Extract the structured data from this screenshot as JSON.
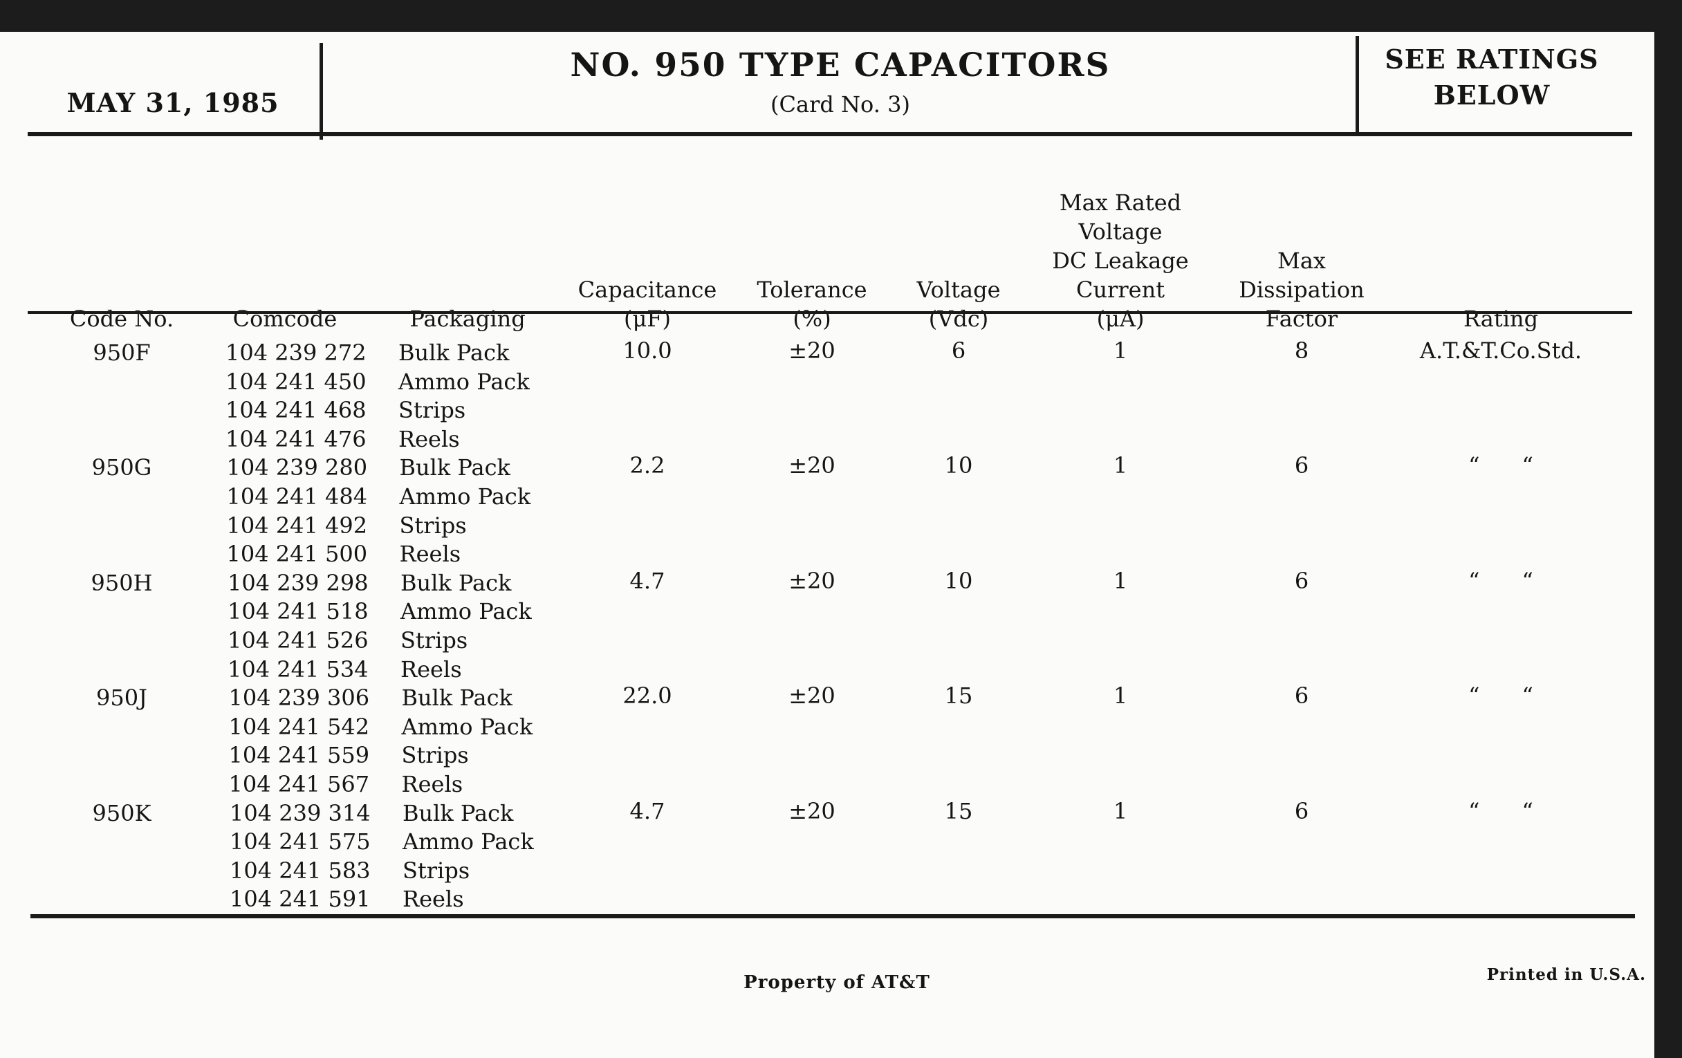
{
  "header": {
    "date": "MAY 31, 1985",
    "title": "NO. 950 TYPE CAPACITORS",
    "subtitle": "(Card No. 3)",
    "note_line1": "SEE RATINGS",
    "note_line2": "BELOW"
  },
  "columns": [
    {
      "key": "code",
      "lines": [
        "Code No."
      ]
    },
    {
      "key": "comcode",
      "lines": [
        "Comcode"
      ]
    },
    {
      "key": "packaging",
      "lines": [
        "Packaging"
      ]
    },
    {
      "key": "capacitance",
      "lines": [
        "Capacitance",
        "(μF)"
      ]
    },
    {
      "key": "tolerance",
      "lines": [
        "Tolerance",
        "(%)"
      ]
    },
    {
      "key": "voltage",
      "lines": [
        "Voltage",
        "(Vdc)"
      ]
    },
    {
      "key": "leakage",
      "lines": [
        "Max Rated",
        "Voltage",
        "DC Leakage",
        "Current",
        "(μA)"
      ]
    },
    {
      "key": "dissipation",
      "lines": [
        "Max",
        "Dissipation",
        "Factor"
      ]
    },
    {
      "key": "rating",
      "lines": [
        "Rating"
      ]
    }
  ],
  "groups": [
    {
      "code": "950F",
      "capacitance": "10.0",
      "tolerance": "±20",
      "voltage": "6",
      "leakage": "1",
      "dissipation": "8",
      "rating": "A.T.&T.Co.Std.",
      "items": [
        {
          "comcode": "104 239 272",
          "packaging": "Bulk Pack"
        },
        {
          "comcode": "104 241 450",
          "packaging": "Ammo Pack"
        },
        {
          "comcode": "104 241 468",
          "packaging": "Strips"
        },
        {
          "comcode": "104 241 476",
          "packaging": "Reels"
        }
      ]
    },
    {
      "code": "950G",
      "capacitance": "2.2",
      "tolerance": "±20",
      "voltage": "10",
      "leakage": "1",
      "dissipation": "6",
      "rating": "“      “",
      "items": [
        {
          "comcode": "104 239 280",
          "packaging": "Bulk Pack"
        },
        {
          "comcode": "104 241 484",
          "packaging": "Ammo Pack"
        },
        {
          "comcode": "104 241 492",
          "packaging": "Strips"
        },
        {
          "comcode": "104 241 500",
          "packaging": "Reels"
        }
      ]
    },
    {
      "code": "950H",
      "capacitance": "4.7",
      "tolerance": "±20",
      "voltage": "10",
      "leakage": "1",
      "dissipation": "6",
      "rating": "“      “",
      "items": [
        {
          "comcode": "104 239 298",
          "packaging": "Bulk Pack"
        },
        {
          "comcode": "104 241 518",
          "packaging": "Ammo Pack"
        },
        {
          "comcode": "104 241 526",
          "packaging": "Strips"
        },
        {
          "comcode": "104 241 534",
          "packaging": "Reels"
        }
      ]
    },
    {
      "code": "950J",
      "capacitance": "22.0",
      "tolerance": "±20",
      "voltage": "15",
      "leakage": "1",
      "dissipation": "6",
      "rating": "“      “",
      "items": [
        {
          "comcode": "104 239 306",
          "packaging": "Bulk Pack"
        },
        {
          "comcode": "104 241 542",
          "packaging": "Ammo Pack"
        },
        {
          "comcode": "104 241 559",
          "packaging": "Strips"
        },
        {
          "comcode": "104 241 567",
          "packaging": "Reels"
        }
      ]
    },
    {
      "code": "950K",
      "capacitance": "4.7",
      "tolerance": "±20",
      "voltage": "15",
      "leakage": "1",
      "dissipation": "6",
      "rating": "“      “",
      "items": [
        {
          "comcode": "104 239 314",
          "packaging": "Bulk Pack"
        },
        {
          "comcode": "104 241 575",
          "packaging": "Ammo Pack"
        },
        {
          "comcode": "104 241 583",
          "packaging": "Strips"
        },
        {
          "comcode": "104 241 591",
          "packaging": "Reels"
        }
      ]
    }
  ],
  "footer": {
    "center": "Property of AT&T",
    "right": "Printed in U.S.A."
  }
}
